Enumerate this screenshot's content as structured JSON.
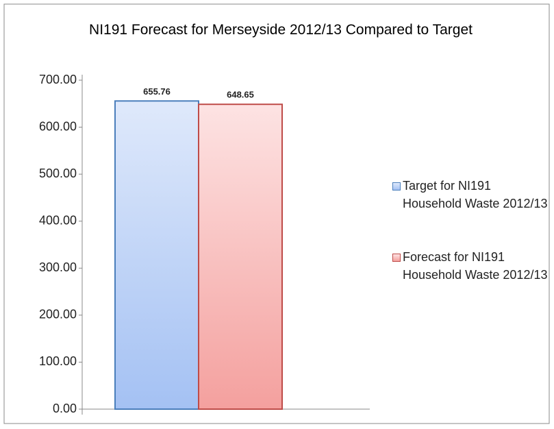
{
  "chart_data": {
    "type": "bar",
    "title": "NI191 Forecast for Merseyside 2012/13 Compared to Target",
    "categories": [
      null
    ],
    "series": [
      {
        "name": "Target for NI191 Household Waste 2012/13",
        "color": "#4a7ebb",
        "values": [
          655.76
        ]
      },
      {
        "name": "Forecast for NI191 Household Waste 2012/13",
        "color": "#be4b48",
        "values": [
          648.65
        ]
      }
    ],
    "ylim": [
      0,
      700
    ],
    "yticks": [
      {
        "value": 0,
        "label": "0.00"
      },
      {
        "value": 100,
        "label": "100.00"
      },
      {
        "value": 200,
        "label": "200.00"
      },
      {
        "value": 300,
        "label": "300.00"
      },
      {
        "value": 400,
        "label": "400.00"
      },
      {
        "value": 500,
        "label": "500.00"
      },
      {
        "value": 600,
        "label": "600.00"
      },
      {
        "value": 700,
        "label": "700.00"
      }
    ],
    "grid": false,
    "legend": "right"
  }
}
